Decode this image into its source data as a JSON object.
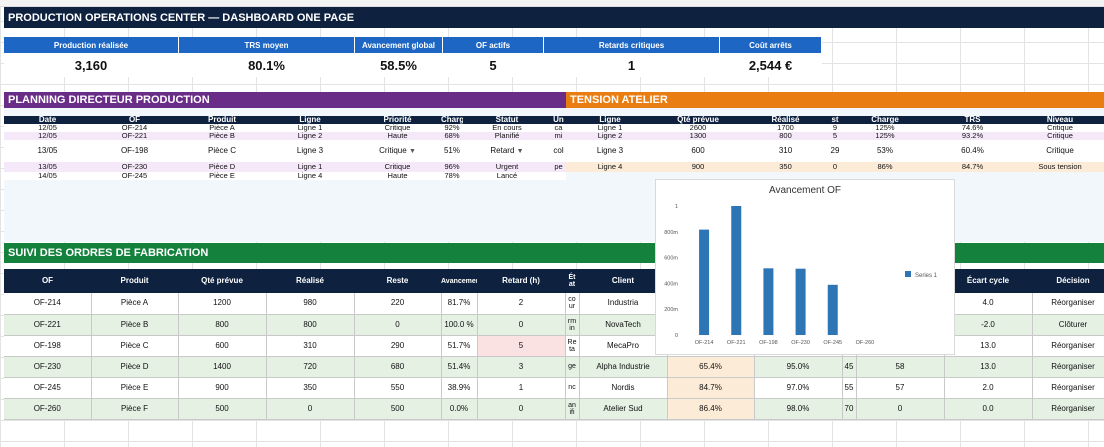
{
  "title": "PRODUCTION OPERATIONS CENTER — DASHBOARD ONE PAGE",
  "kpis": [
    {
      "label": "Production réalisée",
      "value": "3,160"
    },
    {
      "label": "TRS moyen",
      "value": "80.1%"
    },
    {
      "label": "Avancement global",
      "value": "58.5%"
    },
    {
      "label": "OF actifs",
      "value": "5"
    },
    {
      "label": "Retards critiques",
      "value": "1"
    },
    {
      "label": "Coût arrêts",
      "value": "2,544 €"
    }
  ],
  "planning": {
    "title": "PLANNING DIRECTEUR PRODUCTION",
    "headers": [
      "Date",
      "OF",
      "Produit",
      "Ligne",
      "Priorité",
      "Charg",
      "Statut",
      "Un"
    ],
    "rows": [
      {
        "date": "12/05",
        "of": "OF-214",
        "produit": "Pièce A",
        "ligne": "Ligne 1",
        "priorite": "Critique",
        "charge": "92%",
        "statut": "En cours",
        "extra": "ca"
      },
      {
        "date": "12/05",
        "of": "OF-221",
        "produit": "Pièce B",
        "ligne": "Ligne 2",
        "priorite": "Haute",
        "charge": "68%",
        "statut": "Planifié",
        "extra": "mi"
      },
      {
        "date": "13/05",
        "of": "OF-198",
        "produit": "Pièce C",
        "ligne": "Ligne 3",
        "priorite": "Critique",
        "charge": "51%",
        "statut": "Retard",
        "extra": "col"
      },
      {
        "date": "13/05",
        "of": "OF-230",
        "produit": "Pièce D",
        "ligne": "Ligne 1",
        "priorite": "Critique",
        "charge": "96%",
        "statut": "Urgent",
        "extra": "pe"
      },
      {
        "date": "14/05",
        "of": "OF-245",
        "produit": "Pièce E",
        "ligne": "Ligne 4",
        "priorite": "Haute",
        "charge": "78%",
        "statut": "Lancé",
        "extra": ""
      }
    ]
  },
  "tension": {
    "title": "TENSION ATELIER",
    "headers": [
      "Ligne",
      "Qté prévue",
      "Réalisé",
      "st",
      "Charge",
      "TRS",
      "Niveau"
    ],
    "rows": [
      {
        "ligne": "Ligne 1",
        "prevue": "2600",
        "realise": "1700",
        "st": "9",
        "charge": "125%",
        "trs": "74.6%",
        "niveau": "Critique"
      },
      {
        "ligne": "Ligne 2",
        "prevue": "1300",
        "realise": "800",
        "st": "5",
        "charge": "125%",
        "trs": "93.2%",
        "niveau": "Critique"
      },
      {
        "ligne": "Ligne 3",
        "prevue": "600",
        "realise": "310",
        "st": "29",
        "charge": "53%",
        "trs": "60.4%",
        "niveau": "Critique"
      },
      {
        "ligne": "Ligne 4",
        "prevue": "900",
        "realise": "350",
        "st": "0",
        "charge": "86%",
        "trs": "84.7%",
        "niveau": "Sous tension"
      }
    ]
  },
  "suivi": {
    "title": "SUIVI DES ORDRES DE FABRICATION",
    "headers": [
      "OF",
      "Produit",
      "Qté prévue",
      "Réalisé",
      "Reste",
      "Avancement",
      "Retard (h)",
      "Ét at",
      "Client",
      "",
      "",
      "",
      "",
      "Écart cycle",
      "Décision"
    ],
    "rows": [
      {
        "of": "OF-214",
        "produit": "Pièce A",
        "prevue": "1200",
        "realise": "980",
        "reste": "220",
        "avancement": "81.7%",
        "retard": "2",
        "etat": "co ur",
        "client": "Industria",
        "c1": "",
        "c2": "",
        "c3": "",
        "c4": "",
        "ecart": "4.0",
        "decision": "Réorganiser"
      },
      {
        "of": "OF-221",
        "produit": "Pièce B",
        "prevue": "800",
        "realise": "800",
        "reste": "0",
        "avancement": "100.0 %",
        "retard": "0",
        "etat": "rm in",
        "client": "NovaTech",
        "c1": "",
        "c2": "",
        "c3": "",
        "c4": "",
        "ecart": "-2.0",
        "decision": "Clôturer"
      },
      {
        "of": "OF-198",
        "produit": "Pièce C",
        "prevue": "600",
        "realise": "310",
        "reste": "290",
        "avancement": "51.7%",
        "retard": "5",
        "etat": "Re ta",
        "client": "MecaPro",
        "c1": "",
        "c2": "",
        "c3": "",
        "c4": "",
        "ecart": "13.0",
        "decision": "Réorganiser"
      },
      {
        "of": "OF-230",
        "produit": "Pièce D",
        "prevue": "1400",
        "realise": "720",
        "reste": "680",
        "avancement": "51.4%",
        "retard": "3",
        "etat": "ge",
        "client": "Alpha Industrie",
        "c1": "65.4%",
        "c2": "95.0%",
        "c3": "45",
        "c4": "58",
        "ecart": "13.0",
        "decision": "Réorganiser"
      },
      {
        "of": "OF-245",
        "produit": "Pièce E",
        "prevue": "900",
        "realise": "350",
        "reste": "550",
        "avancement": "38.9%",
        "retard": "1",
        "etat": "nc",
        "client": "Nordis",
        "c1": "84.7%",
        "c2": "97.0%",
        "c3": "55",
        "c4": "57",
        "ecart": "2.0",
        "decision": "Réorganiser"
      },
      {
        "of": "OF-260",
        "produit": "Pièce F",
        "prevue": "500",
        "realise": "0",
        "reste": "500",
        "avancement": "0.0%",
        "retard": "0",
        "etat": "an ifi",
        "client": "Atelier Sud",
        "c1": "86.4%",
        "c2": "98.0%",
        "c3": "70",
        "c4": "0",
        "ecart": "0.0",
        "decision": "Réorganiser"
      }
    ]
  },
  "chart_data": {
    "type": "bar",
    "title": "Avancement OF",
    "categories": [
      "OF-214",
      "OF-221",
      "OF-198",
      "OF-230",
      "OF-245",
      "OF-260"
    ],
    "series": [
      {
        "name": "Series 1",
        "values": [
          0.817,
          1.0,
          0.517,
          0.514,
          0.389,
          0.0
        ]
      }
    ],
    "yticks": [
      "0",
      "200m",
      "400m",
      "600m",
      "800m",
      "1"
    ],
    "ylim": [
      0,
      1
    ],
    "legend": "right",
    "color": "#2e75b6"
  }
}
